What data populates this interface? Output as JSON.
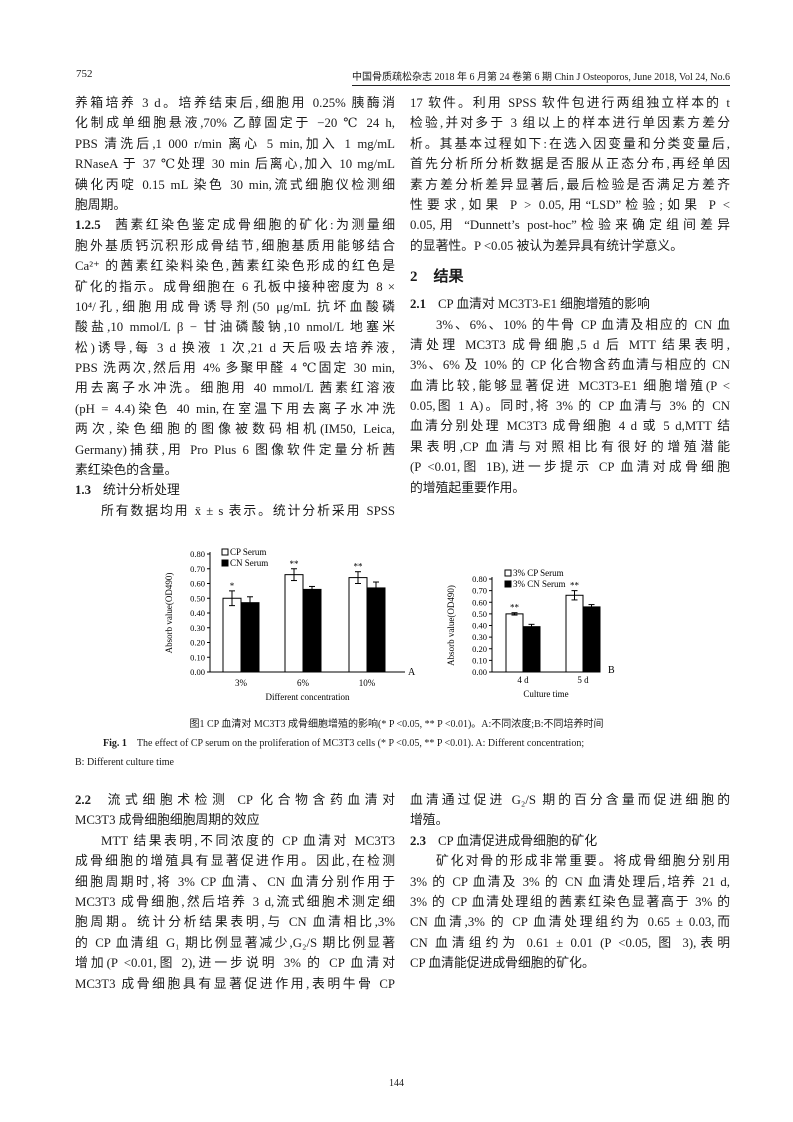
{
  "header": {
    "page_number": "752",
    "journal": "中国骨质疏松杂志 2018 年 6 月第 24 卷第 6 期 Chin J Osteoporos, June 2018, Vol 24, No.6"
  },
  "top_left": [
    {
      "t": "养箱培养 3 d。培养结束后,细胞用 0.25% 胰酶消"
    },
    {
      "t": "化制成单细胞悬液,70% 乙醇固定于 −20 ℃ 24 h,"
    },
    {
      "t": "PBS 清洗后,1 000 r/min 离心 5 min,加入 1 mg/mL"
    },
    {
      "t": "RNaseA 于 37 ℃处理 30 min 后离心,加入 10 mg/mL"
    },
    {
      "t": "碘化丙啶 0.15 mL 染色 30 min,流式细胞仪检测细"
    },
    {
      "t": "胞周期。",
      "end": true
    },
    {
      "b": "1.2.5",
      "t": "茜素红染色鉴定成骨细胞的矿化:为测量细"
    },
    {
      "t": "胞外基质钙沉积形成骨结节,细胞基质用能够结合"
    },
    {
      "t": "Ca²⁺ 的茜素红染料染色,茜素红染色形成的红色是"
    },
    {
      "t": "矿化的指示。成骨细胞在 6 孔板中接种密度为 8 ×"
    },
    {
      "t": "10⁴/孔,细胞用成骨诱导剂(50 μg/mL 抗坏血酸磷"
    },
    {
      "t": "酸盐,10 mmol/L β − 甘油磷酸钠,10 nmol/L 地塞米"
    },
    {
      "t": "松)诱导,每 3 d 换液 1 次,21 d 天后吸去培养液,"
    },
    {
      "t": "PBS 洗两次,然后用 4% 多聚甲醛 4 ℃固定 30 min,"
    },
    {
      "t": "用去离子水冲洗。细胞用 40 mmol/L 茜素红溶液"
    },
    {
      "t": "(pH = 4.4)染色 40 min,在室温下用去离子水冲洗"
    },
    {
      "t": "两次,染色细胞的图像被数码相机(IM50, Leica,"
    },
    {
      "t": "Germany)捕获,用 Pro Plus 6 图像软件定量分析茜"
    },
    {
      "t": "素红染色的含量。",
      "end": true
    },
    {
      "b": "1.3",
      "t": "统计分析处理",
      "end": true
    },
    {
      "t": "所有数据均用 x̄ ± s 表示。统计分析采用 SPSS",
      "ind": true
    }
  ],
  "top_right": [
    {
      "t": "17 软件。利用 SPSS 软件包进行两组独立样本的 t"
    },
    {
      "t": "检验,并对多于 3 组以上的样本进行单因素方差分"
    },
    {
      "t": "析。其基本过程如下:在选入因变量和分类变量后,"
    },
    {
      "t": "首先分析所分析数据是否服从正态分布,再经单因"
    },
    {
      "t": "素方差分析差异显著后,最后检验是否满足方差齐"
    },
    {
      "t": "性要求,如果 P > 0.05,用“LSD”检验;如果 P <"
    },
    {
      "t": "0.05,用 “Dunnett’s post-hoc”检验来确定组间差异"
    },
    {
      "t": "的显著性。P <0.05 被认为差异具有统计学意义。",
      "end": true
    },
    {
      "b": "2",
      "t": "结果",
      "sec": true
    },
    {
      "b": "2.1",
      "t": "CP 血清对 MC3T3-E1 细胞增殖的影响",
      "end": true
    },
    {
      "t": "3%、6%、10% 的牛骨 CP 血清及相应的 CN 血",
      "ind": true
    },
    {
      "t": "清处理 MC3T3 成骨细胞,5 d 后 MTT 结果表明,"
    },
    {
      "t": "3%、6% 及 10% 的 CP 化合物含药血清与相应的 CN"
    },
    {
      "t": "血清比较,能够显著促进 MC3T3-E1 细胞增殖(P <"
    },
    {
      "t": "0.05,图 1 A)。同时,将 3% 的 CP 血清与 3% 的 CN"
    },
    {
      "t": "血清分别处理 MC3T3 成骨细胞 4 d 或 5 d,MTT 结"
    },
    {
      "t": "果表明,CP 血清与对照相比有很好的增殖潜能"
    },
    {
      "t": "(P <0.01,图 1B),进一步提示 CP 血清对成骨细胞"
    },
    {
      "t": "的增殖起重要作用。",
      "end": true
    }
  ],
  "figure": {
    "caption_cn": "图1  CP 血清对 MC3T3 成骨细胞增殖的影响(* P <0.05, ** P <0.01)。A:不同浓度;B:不同培养时间",
    "caption_en_label": "Fig. 1",
    "caption_en": "The effect of CP serum on the proliferation of MC3T3 cells (* P <0.05, ** P <0.01). A: Different concentration;",
    "caption_en_cont": "B: Different culture time"
  },
  "chart_data": [
    {
      "type": "bar",
      "panel_label": "A",
      "categories": [
        "3%",
        "6%",
        "10%"
      ],
      "xlabel": "Different concentration",
      "ylabel": "Absorb value(OD490)",
      "ylim": [
        0,
        0.8
      ],
      "yticks": [
        "0.00",
        "0.10",
        "0.20",
        "0.30",
        "0.40",
        "0.50",
        "0.60",
        "0.70",
        "0.80"
      ],
      "legend_position": "top-left",
      "series": [
        {
          "name": "CP Serum",
          "values": [
            0.5,
            0.66,
            0.64
          ],
          "errors": [
            0.05,
            0.04,
            0.04
          ],
          "color": "#ffffff",
          "annotations": [
            "*",
            "**",
            "**"
          ]
        },
        {
          "name": "CN Serum",
          "values": [
            0.47,
            0.56,
            0.57
          ],
          "errors": [
            0.04,
            0.02,
            0.04
          ],
          "color": "#000000",
          "annotations": [
            "",
            "",
            ""
          ]
        }
      ]
    },
    {
      "type": "bar",
      "panel_label": "B",
      "categories": [
        "4 d",
        "5 d"
      ],
      "xlabel": "Culture time",
      "ylabel": "Absorb value(OD490)",
      "ylim": [
        0,
        0.8
      ],
      "yticks": [
        "0.00",
        "0.10",
        "0.20",
        "0.30",
        "0.40",
        "0.50",
        "0.60",
        "0.70",
        "0.80"
      ],
      "legend_position": "top-left",
      "series": [
        {
          "name": "3% CP Serum",
          "values": [
            0.5,
            0.66
          ],
          "errors": [
            0.01,
            0.04
          ],
          "color": "#ffffff",
          "annotations": [
            "**",
            "**"
          ]
        },
        {
          "name": "3% CN Serum",
          "values": [
            0.39,
            0.56
          ],
          "errors": [
            0.02,
            0.02
          ],
          "color": "#000000",
          "annotations": [
            "",
            ""
          ]
        }
      ]
    }
  ],
  "bottom_left": [
    {
      "b": "2.2",
      "t": "流式细胞术检测 CP 化合物含药血清对"
    },
    {
      "t": "MC3T3 成骨细胞细胞周期的效应",
      "end": true
    },
    {
      "t": "MTT 结果表明,不同浓度的 CP 血清对 MC3T3",
      "ind": true
    },
    {
      "t": "成骨细胞的增殖具有显著促进作用。因此,在检测"
    },
    {
      "t": "细胞周期时,将 3% CP 血清、CN 血清分别作用于"
    },
    {
      "t": "MC3T3 成骨细胞,然后培养 3 d,流式细胞术测定细"
    },
    {
      "t": "胞周期。统计分析结果表明,与 CN 血清相比,3%"
    },
    {
      "t": "的 CP 血清组 G₁ 期比例显著减少,G₂/S 期比例显著"
    },
    {
      "t": "增加(P <0.01,图 2),进一步说明 3% 的 CP 血清对"
    },
    {
      "t": "MC3T3 成骨细胞具有显著促进作用,表明牛骨 CP"
    }
  ],
  "bottom_right": [
    {
      "t": "血清通过促进 G₂/S 期的百分含量而促进细胞的"
    },
    {
      "t": "增殖。",
      "end": true
    },
    {
      "b": "2.3",
      "t": "CP 血清促进成骨细胞的矿化",
      "end": true
    },
    {
      "t": "矿化对骨的形成非常重要。将成骨细胞分别用",
      "ind": true
    },
    {
      "t": "3% 的 CP 血清及 3% 的 CN 血清处理后,培养 21 d,"
    },
    {
      "t": "3% 的 CP 血清处理组的茜素红染色显著高于 3% 的"
    },
    {
      "t": "CN 血清,3% 的 CP 血清处理组约为 0.65 ± 0.03,而"
    },
    {
      "t": "CN 血清组约为 0.61 ± 0.01 (P <0.05, 图 3),表明"
    },
    {
      "t": "CP 血清能促进成骨细胞的矿化。",
      "end": true
    }
  ],
  "footer": {
    "page_number": "144"
  }
}
